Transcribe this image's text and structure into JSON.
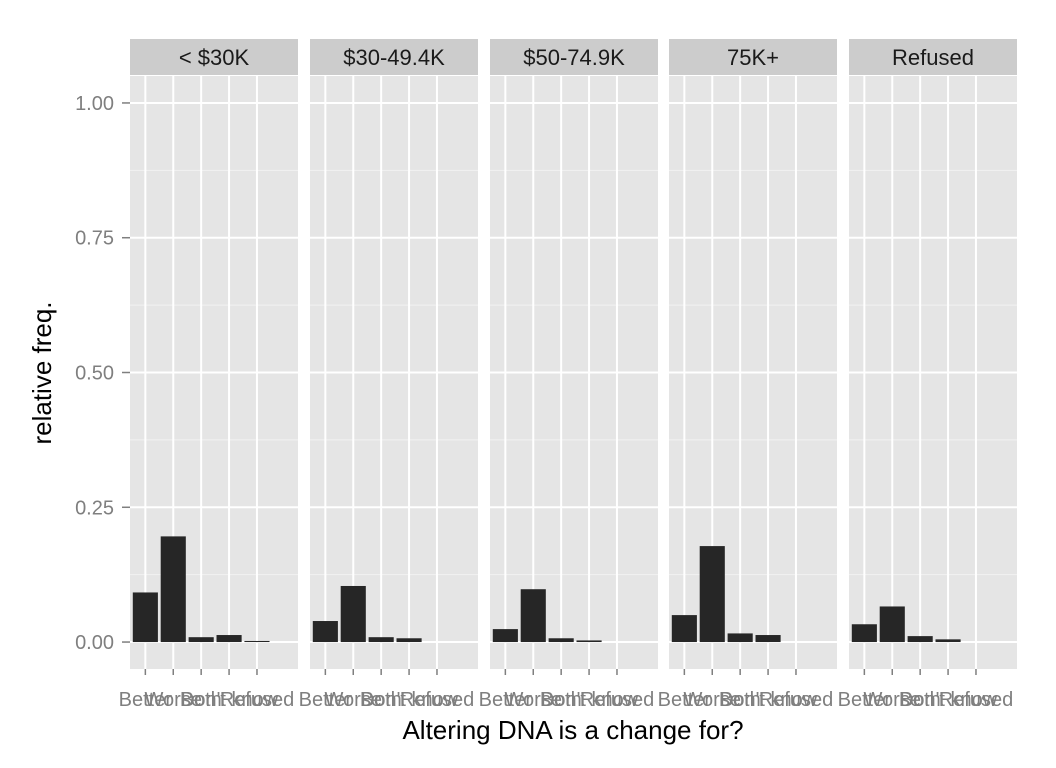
{
  "chart_data": {
    "type": "bar",
    "xlabel": "Altering DNA is a change for?",
    "ylabel": "relative freq.",
    "ylim": [
      -0.05,
      1.05
    ],
    "yticks": [
      0.0,
      0.25,
      0.5,
      0.75,
      1.0
    ],
    "ytick_labels": [
      "0.00",
      "0.25",
      "0.50",
      "0.75",
      "1.00"
    ],
    "categories": [
      "Better",
      "Worse",
      "Both",
      "Don't know",
      "Refused"
    ],
    "grid": true,
    "panels": [
      {
        "strip": "< $30K",
        "values": [
          0.092,
          0.196,
          0.009,
          0.013,
          0.002
        ]
      },
      {
        "strip": "$30-49.4K",
        "values": [
          0.039,
          0.104,
          0.009,
          0.007,
          0.0
        ]
      },
      {
        "strip": "$50-74.9K",
        "values": [
          0.024,
          0.098,
          0.007,
          0.003,
          0.0
        ]
      },
      {
        "strip": "75K+",
        "values": [
          0.05,
          0.178,
          0.016,
          0.013,
          0.0
        ]
      },
      {
        "strip": "Refused",
        "values": [
          0.033,
          0.066,
          0.011,
          0.005,
          0.0
        ]
      }
    ],
    "colors": {
      "panel_bg": "#e5e5e5",
      "strip_bg": "#cccccc",
      "grid_major": "#ffffff",
      "grid_minor": "#f2f2f2",
      "bar": "#262626",
      "tick": "#7f7f7f"
    }
  }
}
